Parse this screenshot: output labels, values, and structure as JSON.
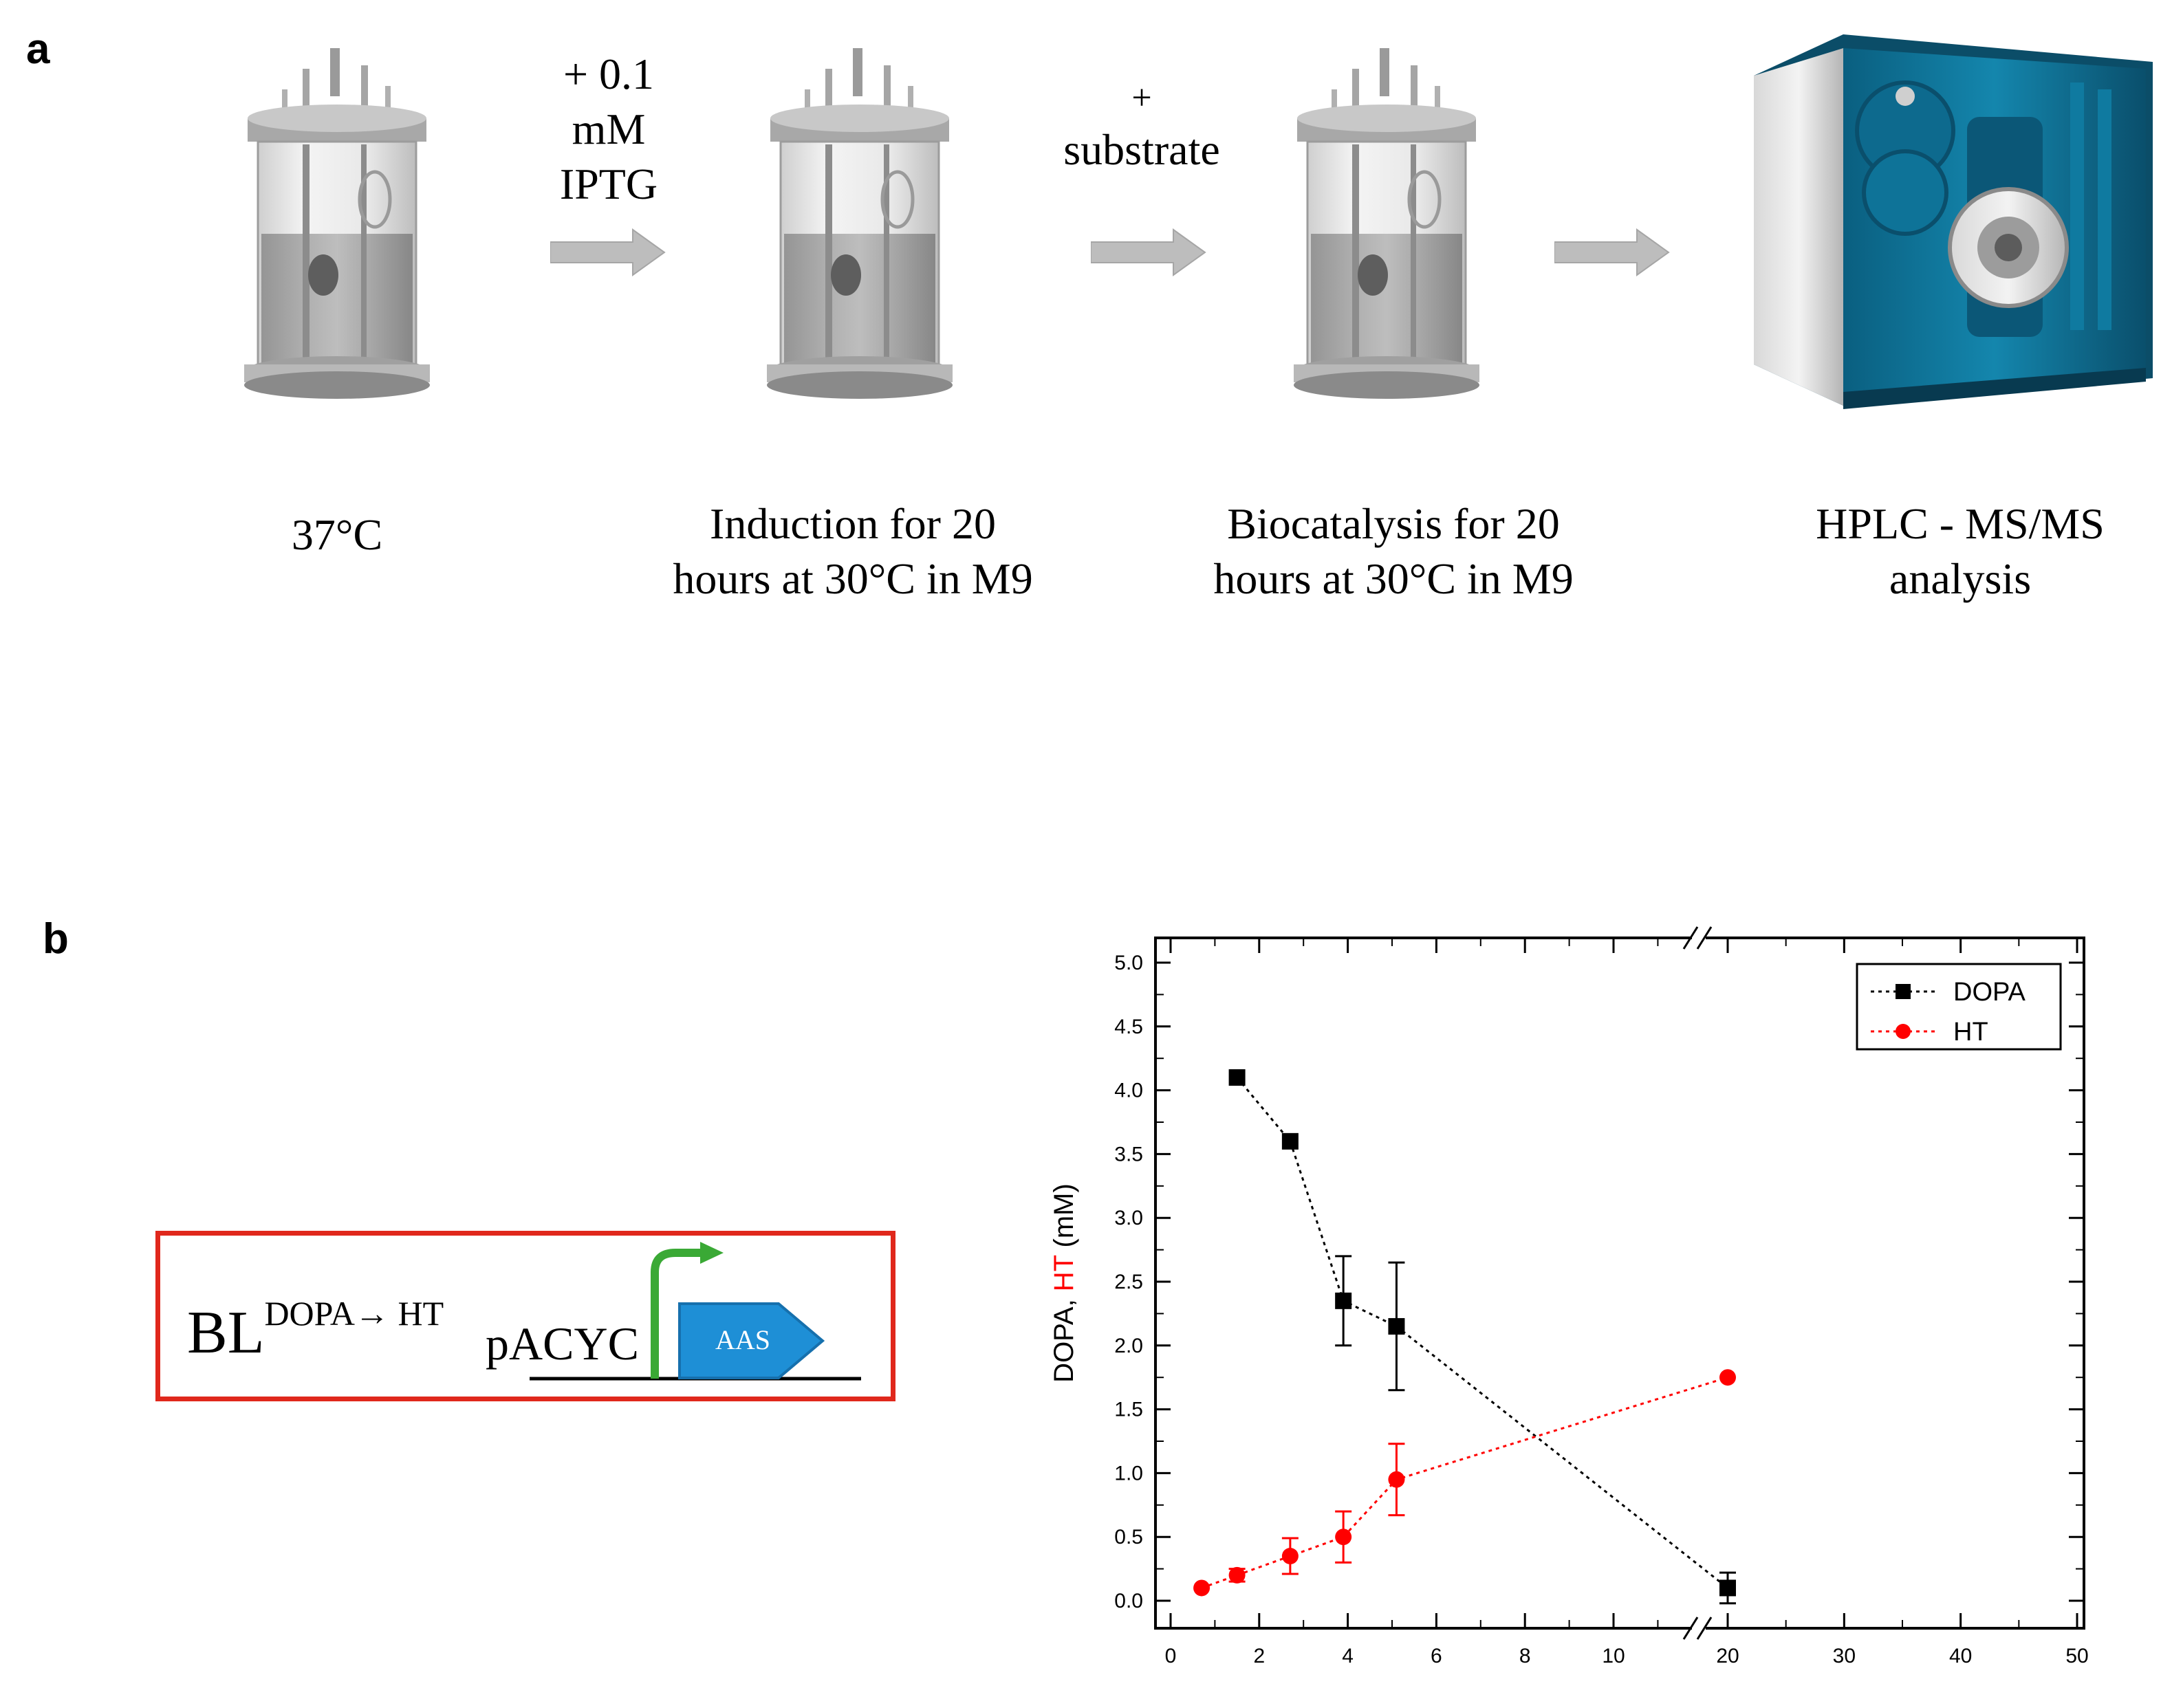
{
  "panel_a": {
    "letter": "a",
    "reagents": [
      {
        "lines": [
          "+ 0.1",
          "mM",
          "IPTG"
        ]
      },
      {
        "lines": [
          "+",
          "substrate"
        ]
      }
    ],
    "steps": [
      {
        "lines": [
          "37°C"
        ],
        "icon": "bioreactor-icon"
      },
      {
        "lines": [
          "Induction for 20",
          "hours at 30°C in M9"
        ],
        "icon": "bioreactor-icon"
      },
      {
        "lines": [
          "Biocatalysis for 20",
          "hours at 30°C in M9"
        ],
        "icon": "bioreactor-icon"
      },
      {
        "lines": [
          "HPLC - MS/MS",
          "analysis"
        ],
        "icon": "hplc-instrument-icon"
      }
    ],
    "arrow_color": "#bdbdbd"
  },
  "panel_b": {
    "letter": "b",
    "construct": {
      "strain": "BL",
      "superscript": "DOPA→ HT",
      "plasmid": "pACYC",
      "gene": "AAS",
      "box_color": "#e0281c",
      "promoter_color": "#3aa935",
      "gene_color": "#1e8fd6"
    },
    "chart_data": {
      "type": "line",
      "ylabel_parts": [
        {
          "text": "DOPA, ",
          "color": "#000000"
        },
        {
          "text": "HT",
          "color": "#ff0000"
        },
        {
          "text": " (mM)",
          "color": "#000000"
        }
      ],
      "xlabel": "",
      "ylim": [
        0,
        5
      ],
      "yticks": [
        "0.0",
        "0.5",
        "1.0",
        "1.5",
        "2.0",
        "2.5",
        "3.0",
        "3.5",
        "4.0",
        "4.5",
        "5.0"
      ],
      "x_axis_break": true,
      "xticks_left": [
        "0",
        "2",
        "4",
        "6",
        "8",
        "10"
      ],
      "xticks_right": [
        "20",
        "30",
        "40",
        "50"
      ],
      "legend_position": "top-right",
      "series": [
        {
          "name": "DOPA",
          "color": "#000000",
          "marker": "square",
          "line": "dotted",
          "points": [
            {
              "x": 1.5,
              "y": 4.1,
              "err": 0
            },
            {
              "x": 2.7,
              "y": 3.6,
              "err": 0
            },
            {
              "x": 3.9,
              "y": 2.35,
              "err": 0.35
            },
            {
              "x": 5.1,
              "y": 2.15,
              "err": 0.5
            },
            {
              "x": 20,
              "y": 0.1,
              "err": 0.12
            }
          ]
        },
        {
          "name": "HT",
          "color": "#ff0000",
          "marker": "circle",
          "line": "dotted",
          "points": [
            {
              "x": 0.7,
              "y": 0.1,
              "err": 0
            },
            {
              "x": 1.5,
              "y": 0.2,
              "err": 0.05
            },
            {
              "x": 2.7,
              "y": 0.35,
              "err": 0.14
            },
            {
              "x": 3.9,
              "y": 0.5,
              "err": 0.2
            },
            {
              "x": 5.1,
              "y": 0.95,
              "err": 0.28
            },
            {
              "x": 20,
              "y": 1.75,
              "err": 0
            }
          ]
        }
      ]
    }
  }
}
